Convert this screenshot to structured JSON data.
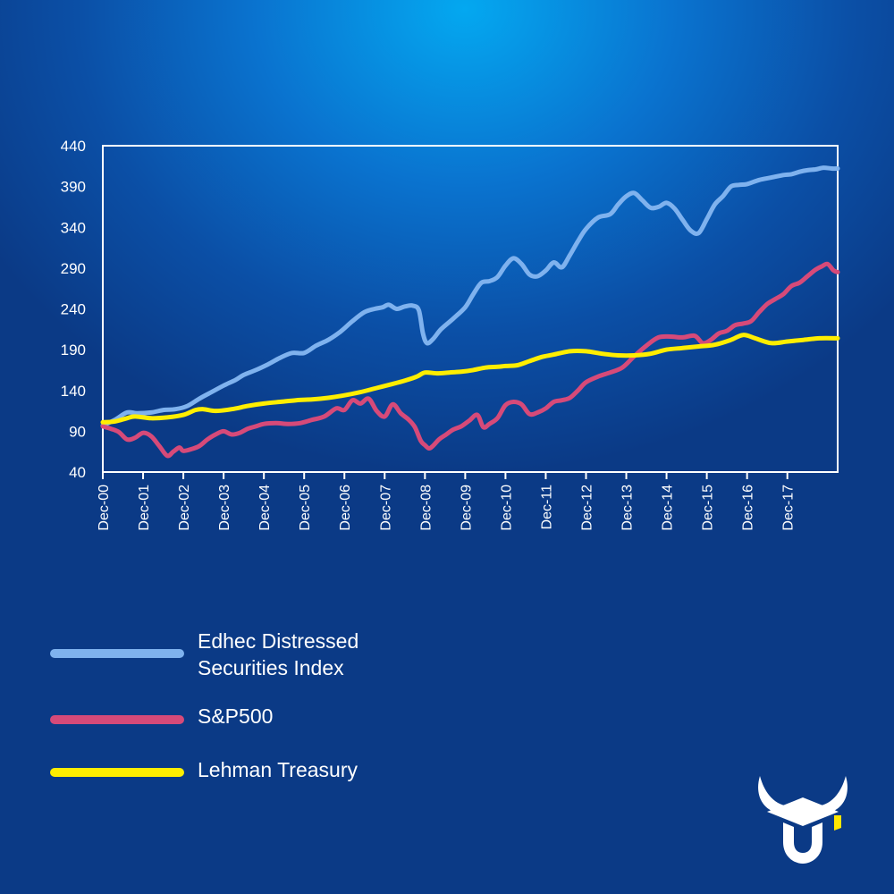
{
  "chart_data": {
    "type": "line",
    "title": "",
    "xlabel": "",
    "ylabel": "",
    "ylim": [
      40,
      440
    ],
    "yticks": [
      40,
      90,
      140,
      190,
      240,
      290,
      340,
      390,
      440
    ],
    "xticks": [
      "Dec-00",
      "Dec-01",
      "Dec-02",
      "Dec-03",
      "Dec-04",
      "Dec-05",
      "Dec-06",
      "Dec-07",
      "Dec-08",
      "Dec-09",
      "Dec-10",
      "Dec-11",
      "Dec-12",
      "Dec-13",
      "Dec-14",
      "Dec-15",
      "Dec-16",
      "Dec-17"
    ],
    "xlim": [
      2000.0,
      2018.25
    ],
    "grid": false,
    "series": [
      {
        "name": "Edhec Distressed Securities Index",
        "color": "#7fb2ee",
        "x": [
          2000.0,
          2000.3,
          2000.6,
          2000.85,
          2001.2,
          2001.5,
          2001.8,
          2002.1,
          2002.4,
          2002.7,
          2003.0,
          2003.3,
          2003.5,
          2003.8,
          2004.1,
          2004.4,
          2004.7,
          2005.0,
          2005.3,
          2005.6,
          2005.9,
          2006.2,
          2006.5,
          2006.75,
          2006.95,
          2007.1,
          2007.3,
          2007.5,
          2007.7,
          2007.85,
          2007.95,
          2008.05,
          2008.2,
          2008.4,
          2008.7,
          2009.0,
          2009.2,
          2009.4,
          2009.6,
          2009.8,
          2010.0,
          2010.2,
          2010.4,
          2010.6,
          2010.8,
          2011.0,
          2011.2,
          2011.4,
          2011.6,
          2011.8,
          2012.0,
          2012.3,
          2012.6,
          2012.8,
          2013.0,
          2013.2,
          2013.4,
          2013.6,
          2013.8,
          2014.0,
          2014.2,
          2014.4,
          2014.6,
          2014.8,
          2015.0,
          2015.2,
          2015.4,
          2015.6,
          2015.8,
          2016.0,
          2016.3,
          2016.6,
          2016.9,
          2017.1,
          2017.3,
          2017.5,
          2017.7,
          2017.9,
          2018.1,
          2018.25
        ],
        "values": [
          97,
          104,
          113,
          112,
          113,
          116,
          117,
          121,
          130,
          138,
          146,
          153,
          159,
          165,
          172,
          180,
          186,
          186,
          195,
          202,
          212,
          225,
          236,
          240,
          242,
          245,
          240,
          243,
          244,
          238,
          210,
          198,
          203,
          215,
          228,
          242,
          258,
          272,
          274,
          279,
          293,
          302,
          295,
          282,
          280,
          287,
          297,
          291,
          306,
          323,
          338,
          352,
          356,
          368,
          378,
          382,
          373,
          364,
          365,
          370,
          363,
          349,
          336,
          333,
          350,
          368,
          378,
          390,
          392,
          393,
          398,
          401,
          404,
          405,
          408,
          410,
          411,
          413,
          412,
          412
        ]
      },
      {
        "name": "S&P500",
        "color": "#d64a79",
        "x": [
          2000.0,
          2000.2,
          2000.4,
          2000.6,
          2000.8,
          2001.0,
          2001.2,
          2001.4,
          2001.6,
          2001.75,
          2001.9,
          2002.0,
          2002.2,
          2002.4,
          2002.6,
          2002.8,
          2003.0,
          2003.2,
          2003.4,
          2003.6,
          2003.8,
          2004.0,
          2004.3,
          2004.6,
          2004.9,
          2005.2,
          2005.5,
          2005.8,
          2006.0,
          2006.2,
          2006.4,
          2006.6,
          2006.8,
          2007.0,
          2007.2,
          2007.4,
          2007.6,
          2007.75,
          2007.9,
          2008.0,
          2008.1,
          2008.2,
          2008.35,
          2008.5,
          2008.7,
          2008.9,
          2009.1,
          2009.3,
          2009.45,
          2009.6,
          2009.8,
          2010.0,
          2010.2,
          2010.4,
          2010.6,
          2010.8,
          2011.0,
          2011.2,
          2011.4,
          2011.6,
          2011.8,
          2012.0,
          2012.3,
          2012.6,
          2012.9,
          2013.2,
          2013.5,
          2013.8,
          2014.1,
          2014.4,
          2014.7,
          2014.9,
          2015.1,
          2015.3,
          2015.5,
          2015.7,
          2015.9,
          2016.1,
          2016.3,
          2016.5,
          2016.7,
          2016.9,
          2017.1,
          2017.3,
          2017.5,
          2017.7,
          2017.85,
          2018.0,
          2018.15,
          2018.25
        ],
        "values": [
          96,
          93,
          89,
          80,
          82,
          88,
          84,
          72,
          60,
          65,
          70,
          66,
          68,
          72,
          80,
          86,
          90,
          86,
          88,
          93,
          96,
          99,
          100,
          99,
          100,
          104,
          108,
          118,
          116,
          128,
          124,
          130,
          115,
          108,
          123,
          112,
          104,
          95,
          78,
          73,
          69,
          72,
          80,
          85,
          92,
          96,
          103,
          110,
          95,
          99,
          106,
          122,
          126,
          123,
          111,
          113,
          118,
          126,
          128,
          131,
          140,
          150,
          157,
          162,
          168,
          182,
          195,
          205,
          206,
          205,
          207,
          198,
          202,
          210,
          213,
          220,
          222,
          225,
          236,
          246,
          252,
          258,
          268,
          272,
          280,
          288,
          292,
          295,
          287,
          285
        ]
      },
      {
        "name": "Lehman Treasury",
        "color": "#ffee00",
        "x": [
          2000.0,
          2000.3,
          2000.6,
          2000.8,
          2001.2,
          2001.6,
          2002.0,
          2002.3,
          2002.5,
          2002.8,
          2003.2,
          2003.6,
          2004.0,
          2004.4,
          2004.8,
          2005.2,
          2005.6,
          2006.0,
          2006.4,
          2006.8,
          2007.2,
          2007.5,
          2007.8,
          2008.0,
          2008.3,
          2008.6,
          2008.9,
          2009.2,
          2009.5,
          2009.8,
          2010.0,
          2010.3,
          2010.6,
          2010.9,
          2011.2,
          2011.6,
          2012.0,
          2012.4,
          2012.8,
          2013.2,
          2013.6,
          2014.0,
          2014.4,
          2014.8,
          2015.2,
          2015.6,
          2015.9,
          2016.2,
          2016.6,
          2017.0,
          2017.4,
          2017.8,
          2018.25
        ],
        "values": [
          101,
          102,
          106,
          108,
          106,
          107,
          110,
          116,
          117,
          115,
          117,
          121,
          124,
          126,
          128,
          129,
          131,
          134,
          138,
          143,
          148,
          152,
          157,
          162,
          161,
          162,
          163,
          165,
          168,
          169,
          170,
          171,
          176,
          181,
          184,
          188,
          188,
          185,
          183,
          183,
          185,
          190,
          192,
          194,
          196,
          202,
          208,
          204,
          198,
          200,
          202,
          204,
          204
        ]
      }
    ]
  },
  "legend": {
    "items": [
      {
        "label_line1": "Edhec Distressed",
        "label_line2": "Securities Index",
        "color": "#7fb2ee"
      },
      {
        "label_line1": "S&P500",
        "label_line2": "",
        "color": "#d64a79"
      },
      {
        "label_line1": "Lehman Treasury",
        "label_line2": "",
        "color": "#ffee00"
      }
    ]
  },
  "logo": {
    "icon": "bull-graduation-cap-logo"
  }
}
